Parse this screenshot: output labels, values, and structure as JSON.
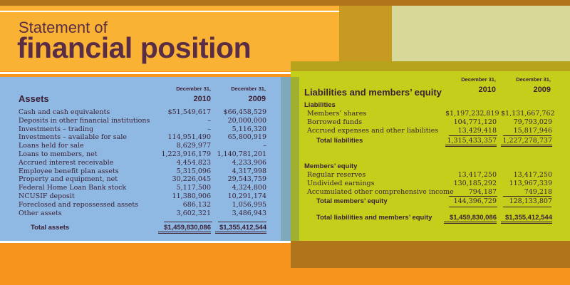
{
  "title": {
    "line1": "Statement of",
    "line2": "financial position"
  },
  "assets": {
    "heading": "Assets",
    "col1_head": "December 31,",
    "col1_year": "2010",
    "col2_head": "December 31,",
    "col2_year": "2009",
    "rows": [
      {
        "label": "Cash and cash equivalents",
        "v2010": "$51,549,617",
        "v2009": "$66,458,529"
      },
      {
        "label": "Deposits in other financial institutions",
        "v2010": "–",
        "v2009": "20,000,000"
      },
      {
        "label": "Investments – trading",
        "v2010": "–",
        "v2009": "5,116,320"
      },
      {
        "label": "Investments – available for sale",
        "v2010": "114,951,490",
        "v2009": "65,800,919"
      },
      {
        "label": "Loans held for sale",
        "v2010": "8,629,977",
        "v2009": "–"
      },
      {
        "label": "Loans to members, net",
        "v2010": "1,223,916,179",
        "v2009": "1,140,781,201"
      },
      {
        "label": "Accrued interest receivable",
        "v2010": "4,454,823",
        "v2009": "4,233,906"
      },
      {
        "label": "Employee benefit plan assets",
        "v2010": "5,315,096",
        "v2009": "4,317,998"
      },
      {
        "label": "Property and equipment, net",
        "v2010": "30,226,045",
        "v2009": "29,543,759"
      },
      {
        "label": "Federal Home Loan Bank stock",
        "v2010": "5,117,500",
        "v2009": "4,324,800"
      },
      {
        "label": "NCUSIF deposit",
        "v2010": "11,380,906",
        "v2009": "10,291,174"
      },
      {
        "label": "Foreclosed and repossessed assets",
        "v2010": "686,132",
        "v2009": "1,056,995"
      },
      {
        "label": "Other assets",
        "v2010": "3,602,321",
        "v2009": "3,486,943"
      }
    ],
    "total": {
      "label": "Total assets",
      "v2010": "$1,459,830,086",
      "v2009": "$1,355,412,544"
    }
  },
  "liab": {
    "heading": "Liabilities and members’ equity",
    "col1_head": "December 31,",
    "col1_year": "2010",
    "col2_head": "December 31,",
    "col2_year": "2009",
    "liab_sub": "Liabilities",
    "liab_rows": [
      {
        "label": "Members’ shares",
        "v2010": "$1,197,232,819",
        "v2009": "$1,131,667,762"
      },
      {
        "label": "Borrowed funds",
        "v2010": "104,771,120",
        "v2009": "79,793,029"
      },
      {
        "label": "Accrued expenses and other liabilities",
        "v2010": "13,429,418",
        "v2009": "15,817,946"
      }
    ],
    "liab_total": {
      "label": "Total liabilities",
      "v2010": "1,315,433,357",
      "v2009": "1,227,278,737"
    },
    "eq_sub": "Members’ equity",
    "eq_rows": [
      {
        "label": "Regular reserves",
        "v2010": "13,417,250",
        "v2009": "13,417,250"
      },
      {
        "label": "Undivided earnings",
        "v2010": "130,185,292",
        "v2009": "113,967,339"
      },
      {
        "label": "Accumulated other comprehensive income",
        "v2010": "794,187",
        "v2009": "749,218"
      }
    ],
    "eq_total": {
      "label": "Total members’ equity",
      "v2010": "144,396,729",
      "v2009": "128,133,807"
    },
    "grand_total": {
      "label": "Total liabilities and members’ equity",
      "v2010": "$1,459,830,086",
      "v2009": "$1,355,412,544"
    }
  }
}
